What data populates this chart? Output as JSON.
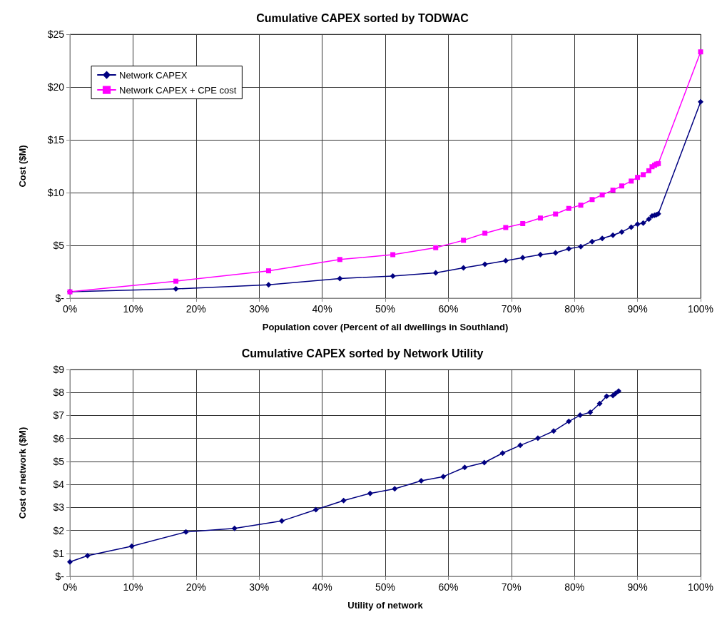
{
  "chart_data": [
    {
      "type": "line",
      "title": "Cumulative CAPEX sorted by TODWAC",
      "xlabel": "Population cover (Percent of all dwellings in Southland)",
      "ylabel": "Cost ($M)",
      "xlim": [
        0,
        100
      ],
      "xticks": [
        {
          "value": 0,
          "label": "0%"
        },
        {
          "value": 10,
          "label": "10%"
        },
        {
          "value": 20,
          "label": "20%"
        },
        {
          "value": 30,
          "label": "30%"
        },
        {
          "value": 40,
          "label": "40%"
        },
        {
          "value": 50,
          "label": "50%"
        },
        {
          "value": 60,
          "label": "60%"
        },
        {
          "value": 70,
          "label": "70%"
        },
        {
          "value": 80,
          "label": "80%"
        },
        {
          "value": 90,
          "label": "90%"
        },
        {
          "value": 100,
          "label": "100%"
        }
      ],
      "ylim": [
        0,
        25
      ],
      "yticks": [
        {
          "value": 0,
          "label": "$-"
        },
        {
          "value": 5,
          "label": "$5"
        },
        {
          "value": 10,
          "label": "$10"
        },
        {
          "value": 15,
          "label": "$15"
        },
        {
          "value": 20,
          "label": "$20"
        },
        {
          "value": 25,
          "label": "$25"
        }
      ],
      "grid": true,
      "legend": "top left",
      "line_style": "solid",
      "x": [
        0,
        16.8,
        31.5,
        42.8,
        51.2,
        58.0,
        62.4,
        65.8,
        69.1,
        71.8,
        74.6,
        77.0,
        79.1,
        81.0,
        82.8,
        84.4,
        86.1,
        87.5,
        89.0,
        90.0,
        90.9,
        91.8,
        92.3,
        92.7,
        93.0,
        93.3,
        100
      ],
      "series": [
        {
          "name": "Network CAPEX",
          "color": "#000080",
          "marker": "diamond",
          "values": [
            0.6,
            0.88,
            1.26,
            1.86,
            2.1,
            2.4,
            2.87,
            3.21,
            3.54,
            3.84,
            4.12,
            4.29,
            4.68,
            4.89,
            5.36,
            5.66,
            5.96,
            6.27,
            6.73,
            7.01,
            7.11,
            7.48,
            7.78,
            7.85,
            7.9,
            7.99,
            18.6
          ]
        },
        {
          "name": "Network CAPEX + CPE cost",
          "color": "#ff00ff",
          "marker": "square",
          "values": [
            0.6,
            1.61,
            2.59,
            3.66,
            4.12,
            4.78,
            5.48,
            6.15,
            6.69,
            7.06,
            7.59,
            7.97,
            8.5,
            8.81,
            9.34,
            9.79,
            10.23,
            10.63,
            11.09,
            11.44,
            11.7,
            12.07,
            12.45,
            12.59,
            12.7,
            12.75,
            23.33
          ]
        }
      ]
    },
    {
      "type": "line",
      "title": "Cumulative CAPEX sorted by Network Utility",
      "xlabel": "Utility of network",
      "ylabel": "Cost of network ($M)",
      "xlim": [
        0,
        100
      ],
      "xticks": [
        {
          "value": 0,
          "label": "0%"
        },
        {
          "value": 10,
          "label": "10%"
        },
        {
          "value": 20,
          "label": "20%"
        },
        {
          "value": 30,
          "label": "30%"
        },
        {
          "value": 40,
          "label": "40%"
        },
        {
          "value": 50,
          "label": "50%"
        },
        {
          "value": 60,
          "label": "60%"
        },
        {
          "value": 70,
          "label": "70%"
        },
        {
          "value": 80,
          "label": "80%"
        },
        {
          "value": 90,
          "label": "90%"
        },
        {
          "value": 100,
          "label": "100%"
        }
      ],
      "ylim": [
        0,
        9
      ],
      "yticks": [
        {
          "value": 0,
          "label": "$-"
        },
        {
          "value": 1,
          "label": "$1"
        },
        {
          "value": 2,
          "label": "$2"
        },
        {
          "value": 3,
          "label": "$3"
        },
        {
          "value": 4,
          "label": "$4"
        },
        {
          "value": 5,
          "label": "$5"
        },
        {
          "value": 6,
          "label": "$6"
        },
        {
          "value": 7,
          "label": "$7"
        },
        {
          "value": 8,
          "label": "$8"
        },
        {
          "value": 9,
          "label": "$9"
        }
      ],
      "grid": true,
      "line_style": "solid",
      "x": [
        0,
        2.8,
        9.8,
        18.4,
        26.1,
        33.6,
        39.0,
        43.4,
        47.6,
        51.5,
        55.7,
        59.2,
        62.6,
        65.7,
        68.6,
        71.4,
        74.2,
        76.7,
        79.1,
        80.9,
        82.5,
        84.0,
        85.1,
        86.1,
        86.5,
        87.0
      ],
      "series": [
        {
          "color": "#000080",
          "marker": "diamond",
          "values": [
            0.63,
            0.9,
            1.31,
            1.93,
            2.09,
            2.41,
            2.9,
            3.3,
            3.61,
            3.81,
            4.16,
            4.34,
            4.74,
            4.95,
            5.36,
            5.7,
            6.01,
            6.32,
            6.74,
            7.01,
            7.14,
            7.52,
            7.84,
            7.87,
            7.96,
            8.06
          ]
        }
      ]
    }
  ]
}
